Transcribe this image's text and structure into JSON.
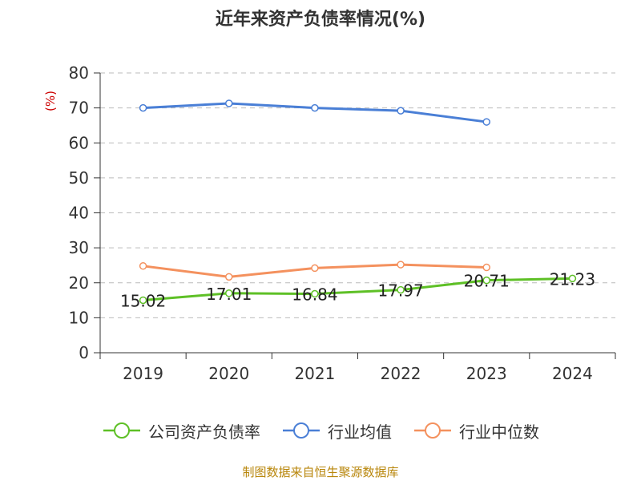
{
  "title": "近年来资产负债率情况(%)",
  "source": "制图数据来自恒生聚源数据库",
  "colors": {
    "company": "#5ec026",
    "industry_avg": "#4a7fd6",
    "industry_median": "#f4915e",
    "grid": "#bbbbbb",
    "axis": "#333333",
    "ylabel": "#cc0000"
  },
  "chart_data": {
    "type": "line",
    "title": "近年来资产负债率情况(%)",
    "xlabel": "",
    "ylabel": "(%)",
    "ylim": [
      0,
      80
    ],
    "yticks": [
      0,
      10,
      20,
      30,
      40,
      50,
      60,
      70,
      80
    ],
    "categories": [
      "2019",
      "2020",
      "2021",
      "2022",
      "2023",
      "2024"
    ],
    "grid": true,
    "legend_position": "bottom",
    "series": [
      {
        "name": "公司资产负债率",
        "color": "#5ec026",
        "values": [
          15.02,
          17.01,
          16.84,
          17.97,
          20.71,
          21.23
        ],
        "labels": [
          "15.02",
          "17.01",
          "16.84",
          "17.97",
          "20.71",
          "21.23"
        ]
      },
      {
        "name": "行业均值",
        "color": "#4a7fd6",
        "values": [
          70.0,
          71.3,
          70.0,
          69.2,
          66.0,
          null
        ]
      },
      {
        "name": "行业中位数",
        "color": "#f4915e",
        "values": [
          24.8,
          21.7,
          24.2,
          25.2,
          24.4,
          null
        ]
      }
    ]
  }
}
